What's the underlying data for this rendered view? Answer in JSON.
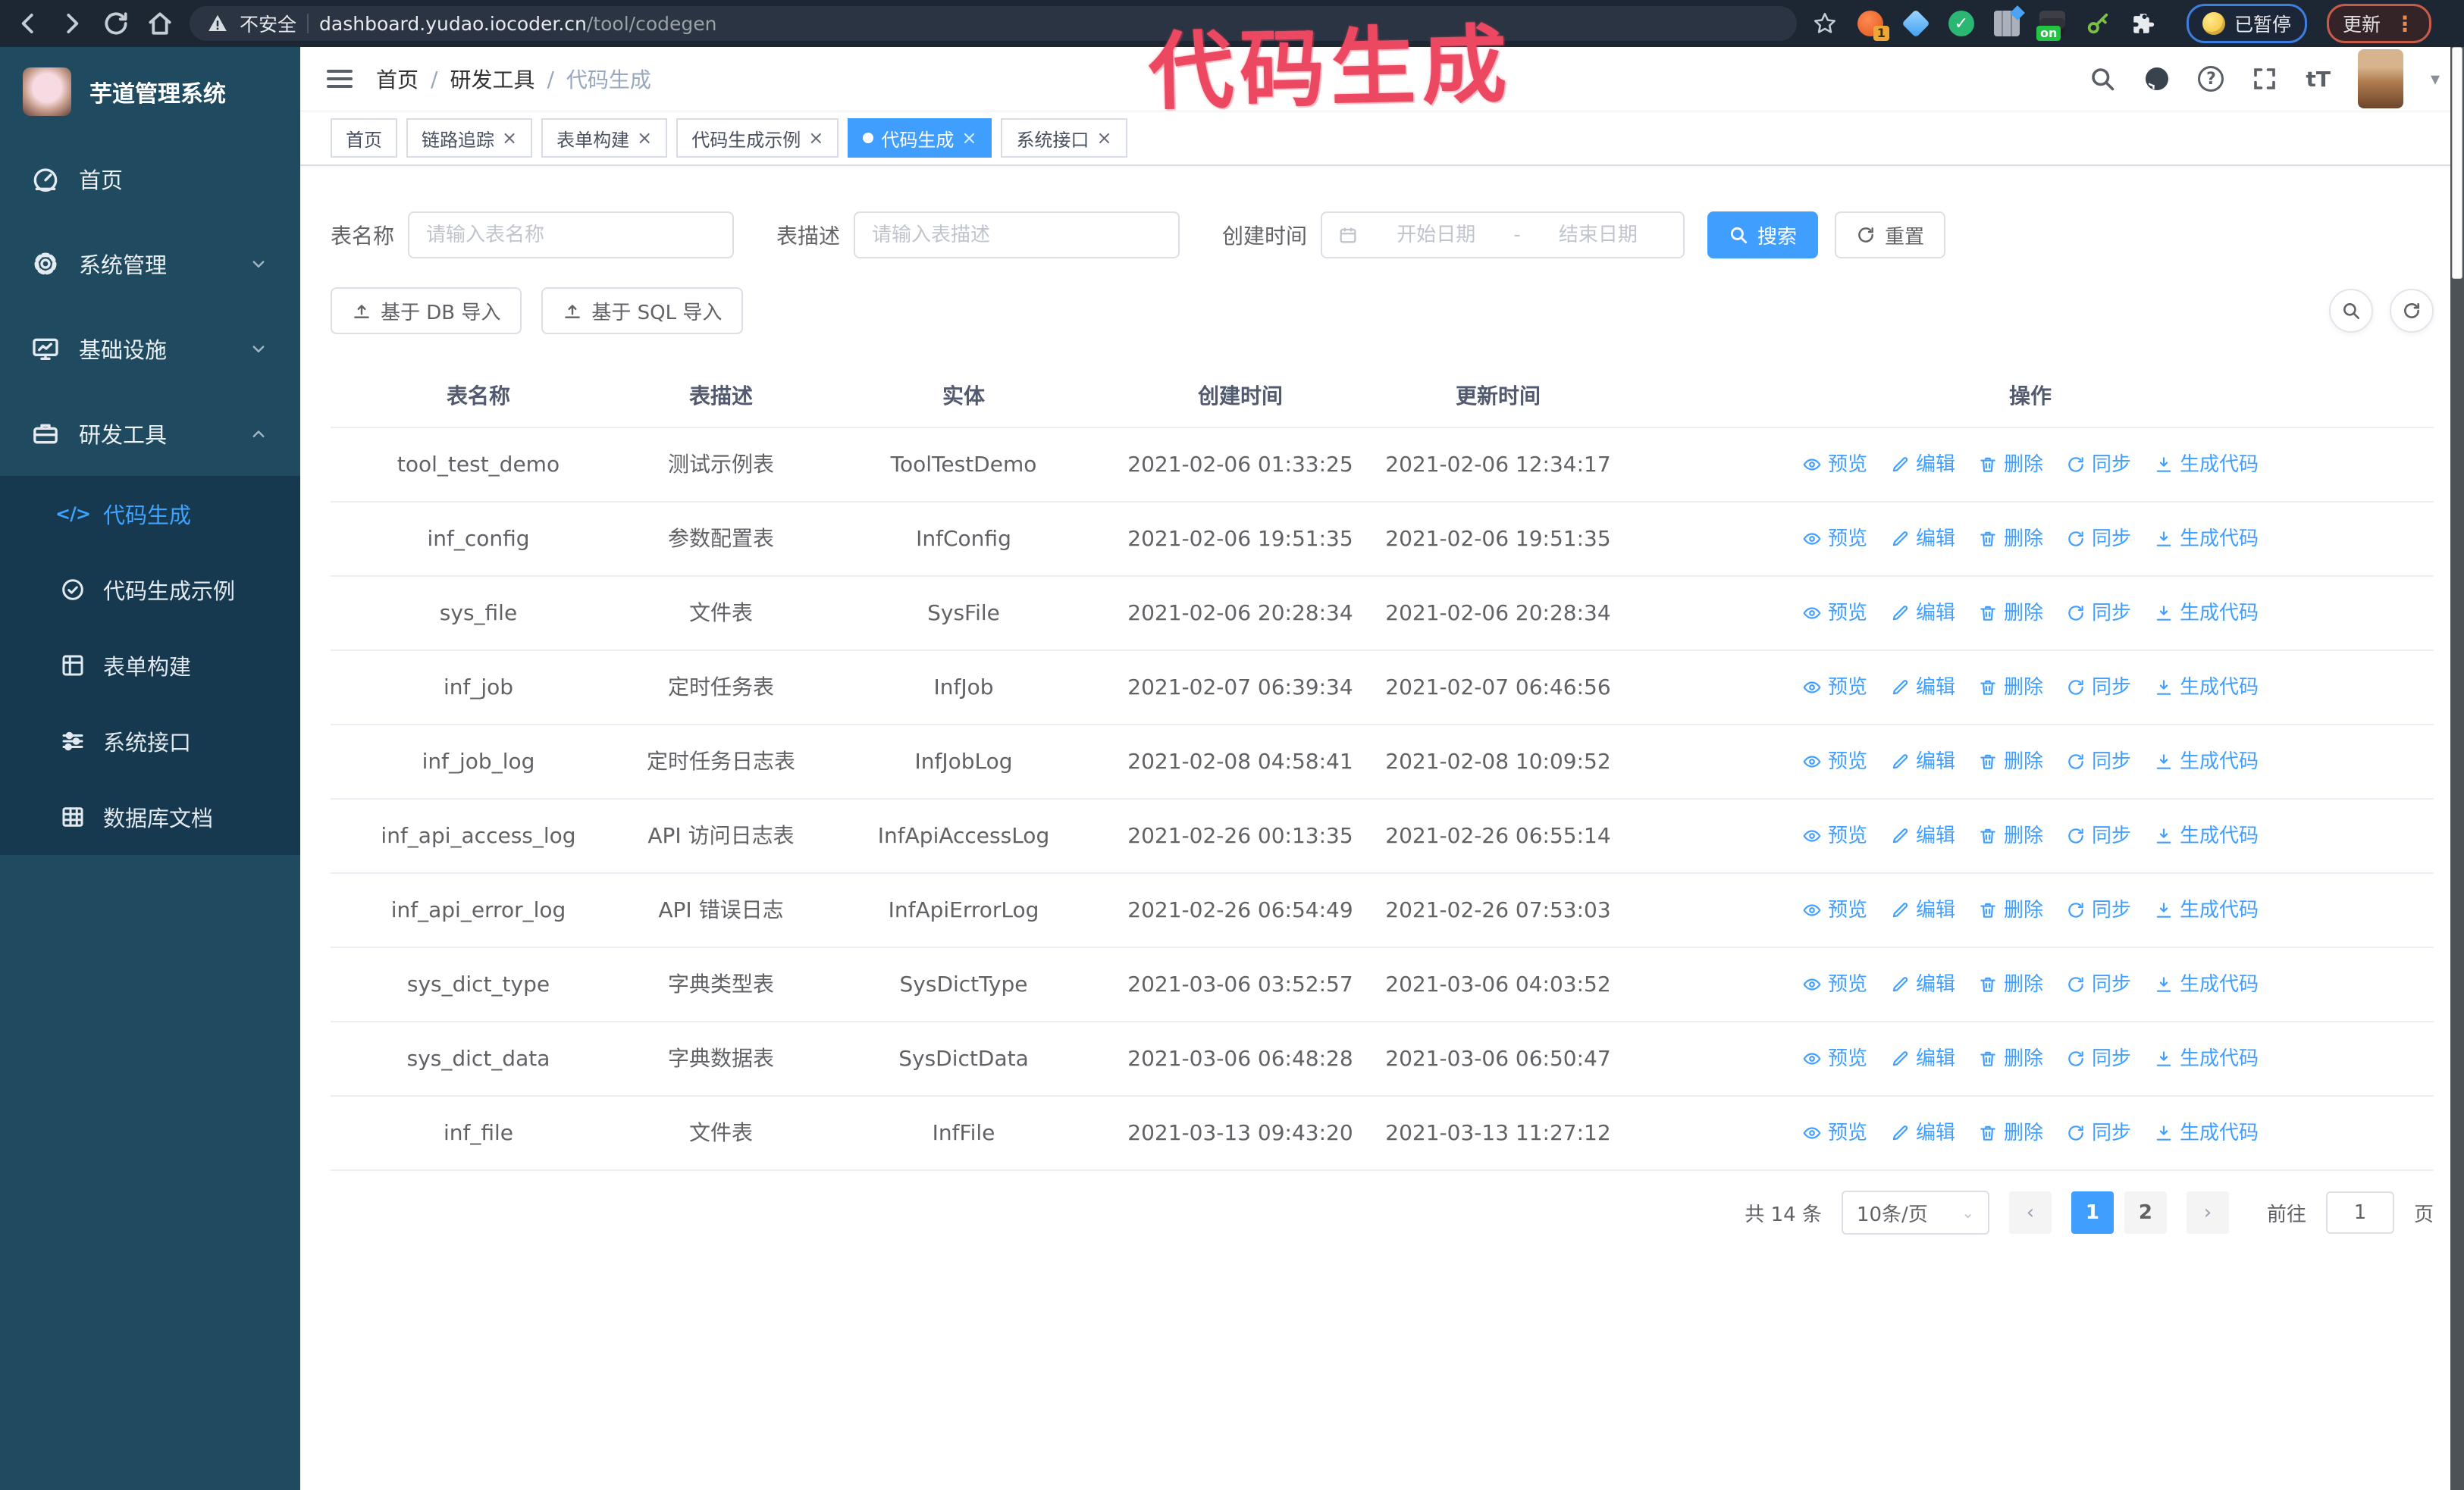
{
  "annotation": {
    "text": "代码生成"
  },
  "browser": {
    "security": "不安全",
    "url_domain": "dashboard.yudao.iocoder.cn",
    "url_path": "/tool/codegen",
    "ext_badge_1": "1",
    "ext_badge_on": "on",
    "paused_chip": "已暂停",
    "update_chip": "更新"
  },
  "sidebar": {
    "title": "芋道管理系统",
    "items": [
      {
        "id": "home",
        "label": "首页",
        "icon": "dashboard",
        "chevron": ""
      },
      {
        "id": "system",
        "label": "系统管理",
        "icon": "gear",
        "chevron": "down"
      },
      {
        "id": "infra",
        "label": "基础设施",
        "icon": "monitor",
        "chevron": "down"
      },
      {
        "id": "devtools",
        "label": "研发工具",
        "icon": "briefcase",
        "chevron": "up"
      }
    ],
    "submenu": [
      {
        "id": "codegen",
        "label": "代码生成",
        "icon": "code",
        "active": true
      },
      {
        "id": "codegen-example",
        "label": "代码生成示例",
        "icon": "example"
      },
      {
        "id": "form-builder",
        "label": "表单构建",
        "icon": "form"
      },
      {
        "id": "system-api",
        "label": "系统接口",
        "icon": "sliders"
      },
      {
        "id": "db-doc",
        "label": "数据库文档",
        "icon": "dbgrid"
      }
    ]
  },
  "navbar": {
    "breadcrumb": [
      "首页",
      "研发工具",
      "代码生成"
    ]
  },
  "tabs": [
    {
      "label": "首页",
      "closable": false
    },
    {
      "label": "链路追踪"
    },
    {
      "label": "表单构建"
    },
    {
      "label": "代码生成示例"
    },
    {
      "label": "代码生成",
      "active": true
    },
    {
      "label": "系统接口"
    }
  ],
  "filters": {
    "name_label": "表名称",
    "name_placeholder": "请输入表名称",
    "desc_label": "表描述",
    "desc_placeholder": "请输入表描述",
    "time_label": "创建时间",
    "start_placeholder": "开始日期",
    "range_separator": "-",
    "end_placeholder": "结束日期",
    "search_label": "搜索",
    "reset_label": "重置"
  },
  "toolbar": {
    "db_import": "基于 DB 导入",
    "sql_import": "基于 SQL 导入"
  },
  "table": {
    "headers": [
      "表名称",
      "表描述",
      "实体",
      "创建时间",
      "更新时间",
      "操作"
    ],
    "actions": [
      {
        "label": "预览",
        "icon": "eye"
      },
      {
        "label": "编辑",
        "icon": "edit"
      },
      {
        "label": "删除",
        "icon": "trash"
      },
      {
        "label": "同步",
        "icon": "sync"
      },
      {
        "label": "生成代码",
        "icon": "download"
      }
    ],
    "rows": [
      {
        "name": "tool_test_demo",
        "desc": "测试示例表",
        "entity": "ToolTestDemo",
        "created": "2021-02-06 01:33:25",
        "updated": "2021-02-06 12:34:17"
      },
      {
        "name": "inf_config",
        "desc": "参数配置表",
        "entity": "InfConfig",
        "created": "2021-02-06 19:51:35",
        "updated": "2021-02-06 19:51:35"
      },
      {
        "name": "sys_file",
        "desc": "文件表",
        "entity": "SysFile",
        "created": "2021-02-06 20:28:34",
        "updated": "2021-02-06 20:28:34"
      },
      {
        "name": "inf_job",
        "desc": "定时任务表",
        "entity": "InfJob",
        "created": "2021-02-07 06:39:34",
        "updated": "2021-02-07 06:46:56"
      },
      {
        "name": "inf_job_log",
        "desc": "定时任务日志表",
        "entity": "InfJobLog",
        "created": "2021-02-08 04:58:41",
        "updated": "2021-02-08 10:09:52"
      },
      {
        "name": "inf_api_access_log",
        "desc": "API 访问日志表",
        "entity": "InfApiAccessLog",
        "created": "2021-02-26 00:13:35",
        "updated": "2021-02-26 06:55:14"
      },
      {
        "name": "inf_api_error_log",
        "desc": "API 错误日志",
        "entity": "InfApiErrorLog",
        "created": "2021-02-26 06:54:49",
        "updated": "2021-02-26 07:53:03"
      },
      {
        "name": "sys_dict_type",
        "desc": "字典类型表",
        "entity": "SysDictType",
        "created": "2021-03-06 03:52:57",
        "updated": "2021-03-06 04:03:52"
      },
      {
        "name": "sys_dict_data",
        "desc": "字典数据表",
        "entity": "SysDictData",
        "created": "2021-03-06 06:48:28",
        "updated": "2021-03-06 06:50:47"
      },
      {
        "name": "inf_file",
        "desc": "文件表",
        "entity": "InfFile",
        "created": "2021-03-13 09:43:20",
        "updated": "2021-03-13 11:27:12"
      }
    ]
  },
  "pagination": {
    "total": "共 14 条",
    "page_size": "10条/页",
    "pages": [
      "1",
      "2"
    ],
    "active_page": "1",
    "goto_label": "前往",
    "goto_value": "1",
    "unit_label": "页"
  },
  "colors": {
    "accent": "#409eff",
    "annotation": "#ed4861",
    "sidebar_bg": "#1f4a5f",
    "submenu_bg": "#16394f",
    "chrome_bg": "#1d2633"
  }
}
